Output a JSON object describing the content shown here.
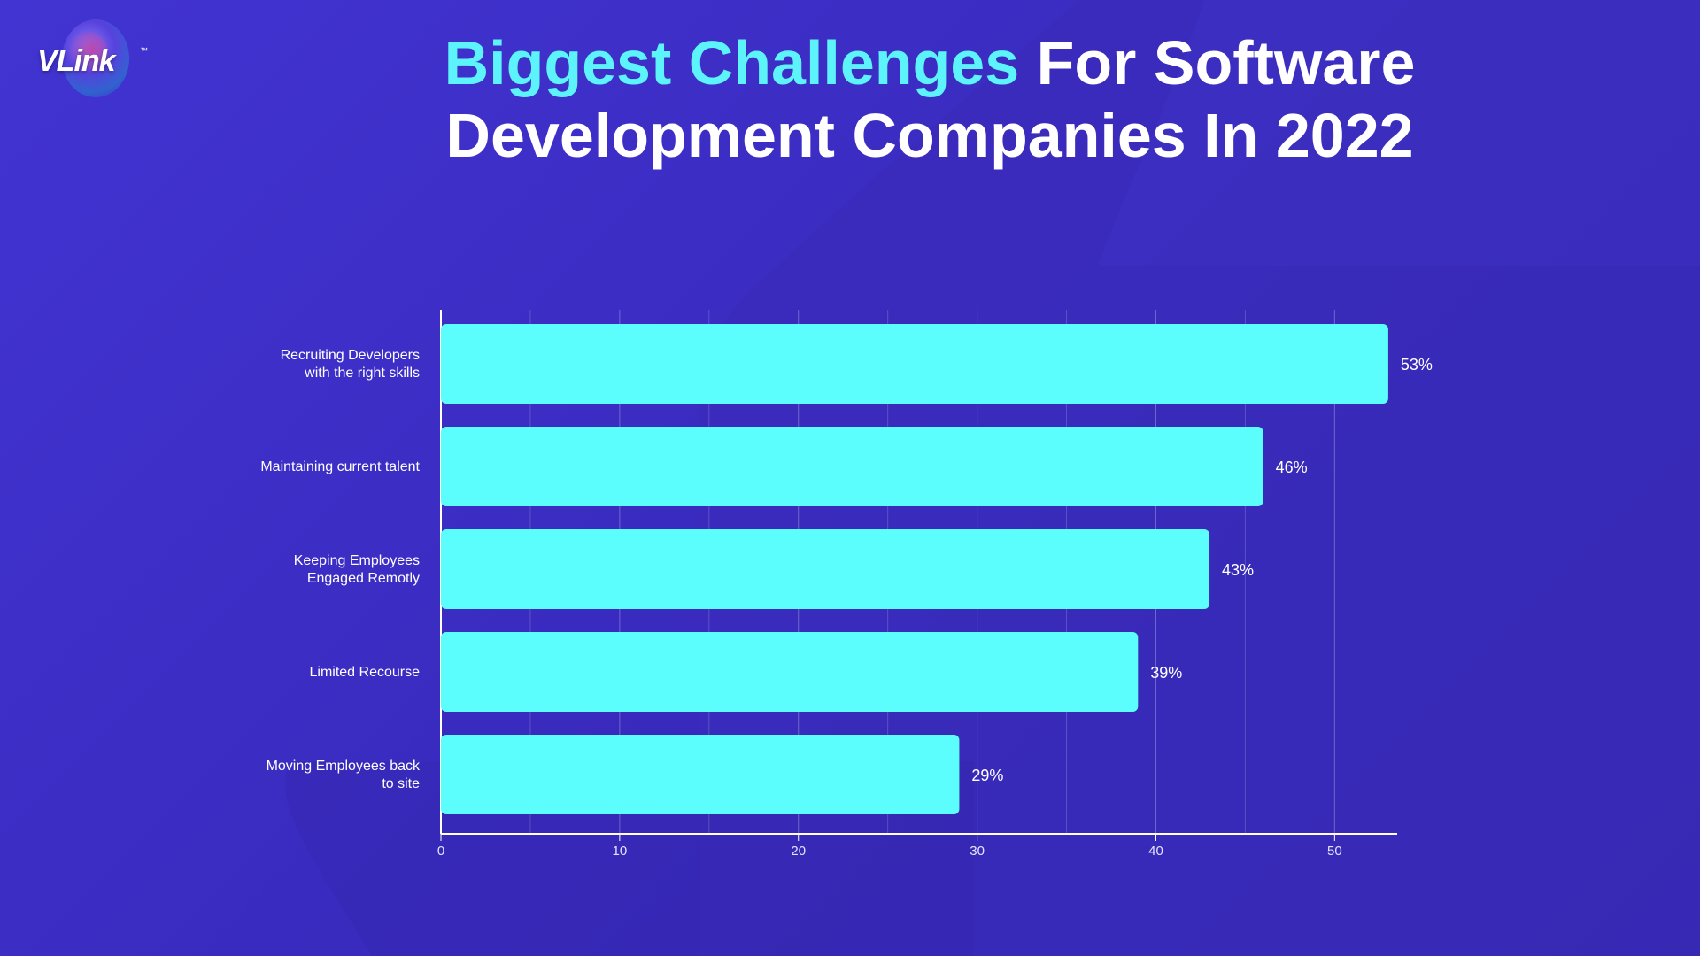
{
  "brand": {
    "logo_text": "VLink",
    "trademark": "™"
  },
  "title": {
    "highlight": "Biggest Challenges",
    "rest": " For Software Development Companies In 2022"
  },
  "colors": {
    "background": "#3b2cc2",
    "bar": "#5cfdfd",
    "title_highlight": "#5cf3fb",
    "text": "#ffffff"
  },
  "chart_data": {
    "type": "bar",
    "orientation": "horizontal",
    "categories": [
      [
        "Recruiting Developers",
        "with the right skills"
      ],
      [
        "Maintaining current talent"
      ],
      [
        "Keeping Employees",
        "Engaged  Remotly"
      ],
      [
        "Limited Recourse"
      ],
      [
        "Moving Employees back",
        "to site"
      ]
    ],
    "values": [
      53,
      46,
      43,
      39,
      29
    ],
    "value_labels": [
      "53%",
      "46%",
      "43%",
      "39%",
      "29%"
    ],
    "xlim": [
      0,
      53.5
    ],
    "xticks": [
      0,
      10,
      20,
      30,
      40,
      50
    ],
    "grid": true,
    "legend": "none"
  }
}
